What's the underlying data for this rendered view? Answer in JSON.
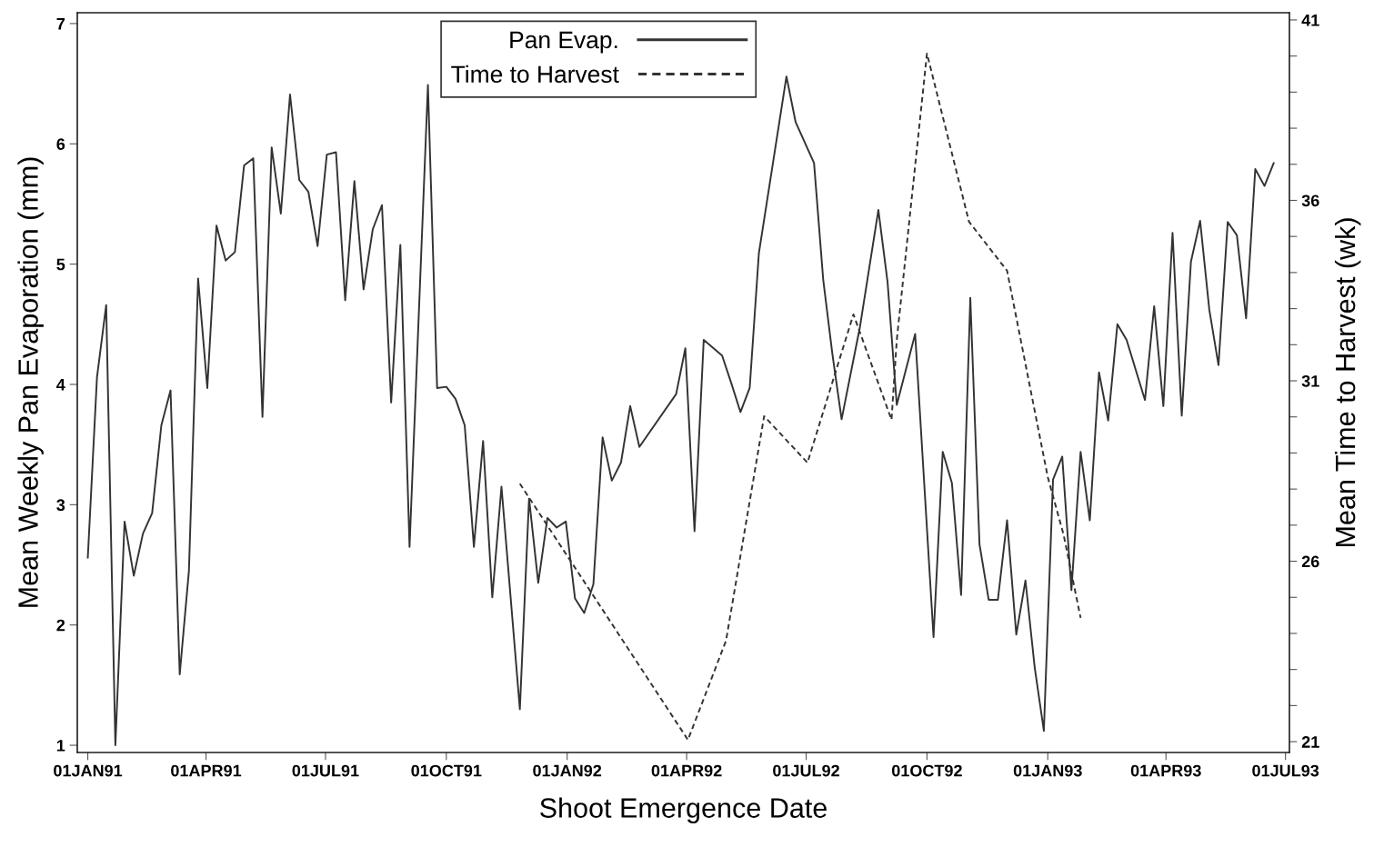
{
  "chart_data": {
    "type": "line",
    "xlabel": "Shoot Emergence Date",
    "ylabel": "Mean Weekly Pan Evaporation (mm)",
    "y2label": "Mean Time to Harvest (wk)",
    "xlim": [
      "1990-12-24",
      "1993-07-04"
    ],
    "xticks": [
      {
        "value": "1991-01-01",
        "label": "01JAN91"
      },
      {
        "value": "1991-04-01",
        "label": "01APR91"
      },
      {
        "value": "1991-07-01",
        "label": "01JUL91"
      },
      {
        "value": "1991-10-01",
        "label": "01OCT91"
      },
      {
        "value": "1992-01-01",
        "label": "01JAN92"
      },
      {
        "value": "1992-04-01",
        "label": "01APR92"
      },
      {
        "value": "1992-07-01",
        "label": "01JUL92"
      },
      {
        "value": "1992-10-01",
        "label": "01OCT92"
      },
      {
        "value": "1993-01-01",
        "label": "01JAN93"
      },
      {
        "value": "1993-04-01",
        "label": "01APR93"
      },
      {
        "value": "1993-07-01",
        "label": "01JUL93"
      }
    ],
    "ylim": [
      0.94,
      7.09
    ],
    "yticks": [
      1,
      2,
      3,
      4,
      5,
      6,
      7
    ],
    "y2lim": [
      20.7,
      41.2
    ],
    "y2ticks": [
      21,
      {
        "value": 22,
        "label": null
      },
      {
        "value": 23,
        "label": null
      },
      {
        "value": 24,
        "label": null
      },
      {
        "value": 25,
        "label": null
      },
      26,
      {
        "value": 27,
        "label": null
      },
      {
        "value": 28,
        "label": null
      },
      {
        "value": 29,
        "label": null
      },
      {
        "value": 30,
        "label": null
      },
      31,
      {
        "value": 32,
        "label": null
      },
      {
        "value": 33,
        "label": null
      },
      {
        "value": 34,
        "label": null
      },
      {
        "value": 35,
        "label": null
      },
      36,
      {
        "value": 37,
        "label": null
      },
      {
        "value": 38,
        "label": null
      },
      {
        "value": 39,
        "label": null
      },
      {
        "value": 40,
        "label": null
      },
      41
    ],
    "legend": "top",
    "grid": false,
    "marker": "none",
    "series": [
      {
        "name": "Pan Evap.",
        "color": "#333333",
        "line_style": "solid",
        "x": [
          "1991-01-01",
          "1991-01-08",
          "1991-01-15",
          "1991-01-22",
          "1991-01-29",
          "1991-02-05",
          "1991-02-12",
          "1991-02-19",
          "1991-02-26",
          "1991-03-05",
          "1991-03-12",
          "1991-03-19",
          "1991-03-26",
          "1991-04-02",
          "1991-04-09",
          "1991-04-16",
          "1991-04-23",
          "1991-04-30",
          "1991-05-07",
          "1991-05-14",
          "1991-05-21",
          "1991-05-28",
          "1991-06-04",
          "1991-06-11",
          "1991-06-18",
          "1991-06-25",
          "1991-07-02",
          "1991-07-09",
          "1991-07-16",
          "1991-07-23",
          "1991-07-30",
          "1991-08-06",
          "1991-08-13",
          "1991-08-20",
          "1991-08-27",
          "1991-09-03",
          "1991-09-17",
          "1991-09-24",
          "1991-10-01",
          "1991-10-08",
          "1991-10-15",
          "1991-10-22",
          "1991-10-29",
          "1991-11-05",
          "1991-11-12",
          "1991-11-26",
          "1991-12-03",
          "1991-12-10",
          "1991-12-17",
          "1991-12-24",
          "1991-12-31",
          "1992-01-07",
          "1992-01-14",
          "1992-01-21",
          "1992-01-28",
          "1992-02-04",
          "1992-02-11",
          "1992-02-18",
          "1992-02-25",
          "1992-03-24",
          "1992-03-31",
          "1992-04-07",
          "1992-04-14",
          "1992-04-28",
          "1992-05-05",
          "1992-05-12",
          "1992-05-19",
          "1992-05-26",
          "1992-06-16",
          "1992-06-23",
          "1992-07-07",
          "1992-07-14",
          "1992-07-21",
          "1992-07-28",
          "1992-08-11",
          "1992-08-25",
          "1992-09-01",
          "1992-09-08",
          "1992-09-22",
          "1992-10-06",
          "1992-10-13",
          "1992-10-20",
          "1992-10-27",
          "1992-11-03",
          "1992-11-10",
          "1992-11-17",
          "1992-11-24",
          "1992-12-01",
          "1992-12-08",
          "1992-12-15",
          "1992-12-22",
          "1992-12-29",
          "1993-01-05",
          "1993-01-12",
          "1993-01-19",
          "1993-01-26",
          "1993-02-02",
          "1993-02-09",
          "1993-02-16",
          "1993-02-23",
          "1993-03-02",
          "1993-03-16",
          "1993-03-23",
          "1993-03-30",
          "1993-04-06",
          "1993-04-13",
          "1993-04-20",
          "1993-04-27",
          "1993-05-04",
          "1993-05-11",
          "1993-05-18",
          "1993-05-25",
          "1993-06-01",
          "1993-06-08",
          "1993-06-15",
          "1993-06-22"
        ],
        "values": [
          2.56,
          4.06,
          4.66,
          1.0,
          2.86,
          2.41,
          2.76,
          2.93,
          3.66,
          3.95,
          1.59,
          2.45,
          4.88,
          3.97,
          5.32,
          5.03,
          5.1,
          5.82,
          5.88,
          3.73,
          5.97,
          5.42,
          6.41,
          5.7,
          5.6,
          5.15,
          5.91,
          5.93,
          4.7,
          5.69,
          4.79,
          5.29,
          5.49,
          3.85,
          5.16,
          2.65,
          6.49,
          3.97,
          3.98,
          3.88,
          3.66,
          2.65,
          3.53,
          2.23,
          3.15,
          1.3,
          3.05,
          2.35,
          2.89,
          2.81,
          2.86,
          2.22,
          2.1,
          2.34,
          3.56,
          3.2,
          3.35,
          3.82,
          3.48,
          3.92,
          4.3,
          2.78,
          4.37,
          4.24,
          4.01,
          3.77,
          3.97,
          5.09,
          6.56,
          6.18,
          5.84,
          4.87,
          4.25,
          3.71,
          4.48,
          5.45,
          4.85,
          3.83,
          4.42,
          1.9,
          3.44,
          3.18,
          2.25,
          4.72,
          2.67,
          2.21,
          2.21,
          2.87,
          1.92,
          2.37,
          1.65,
          1.12,
          3.21,
          3.4,
          2.29,
          3.44,
          2.87,
          4.1,
          3.7,
          4.5,
          4.37,
          3.87,
          4.65,
          3.82,
          5.26,
          3.74,
          5.02,
          5.36,
          4.62,
          4.16,
          5.35,
          5.24,
          4.55,
          5.79,
          5.65,
          5.84
        ]
      },
      {
        "name": "Time to Harvest",
        "color": "#333333",
        "line_style": "dashed",
        "axis": "y2",
        "x": [
          "1991-11-26",
          "1992-04-02",
          "1992-05-01",
          "1992-05-30",
          "1992-07-02",
          "1992-08-06",
          "1992-09-04",
          "1992-09-08",
          "1992-10-01",
          "1992-11-02",
          "1992-12-01",
          "1993-01-01",
          "1993-01-13",
          "1993-01-26"
        ],
        "values": [
          28.15,
          21.05,
          23.8,
          30.02,
          28.73,
          32.84,
          29.92,
          32.13,
          40.07,
          35.41,
          34.05,
          28.33,
          26.74,
          24.43
        ]
      }
    ]
  }
}
